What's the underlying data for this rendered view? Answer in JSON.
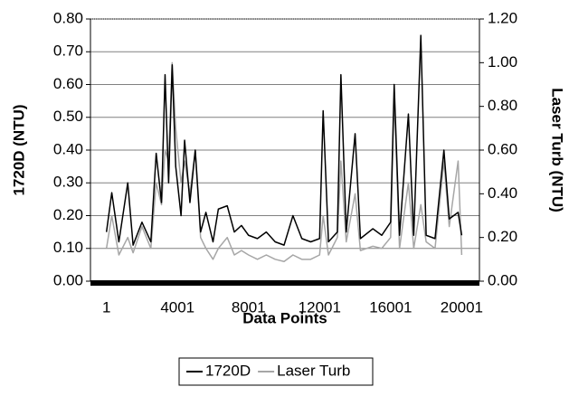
{
  "chart_data": {
    "type": "line",
    "x_label": "Data Points",
    "y_label": "1720D (NTU)",
    "y2_label": "Laser Turb (NTU)",
    "x": [
      1,
      300,
      700,
      1200,
      1500,
      2000,
      2500,
      2800,
      3100,
      3300,
      3500,
      3700,
      3900,
      4200,
      4400,
      4700,
      5000,
      5300,
      5600,
      6000,
      6300,
      6800,
      7200,
      7600,
      8000,
      8500,
      9000,
      9500,
      10000,
      10500,
      11000,
      11500,
      12000,
      12200,
      12500,
      13000,
      13200,
      13500,
      14000,
      14300,
      15000,
      15500,
      16000,
      16200,
      16500,
      17000,
      17300,
      17700,
      18000,
      18500,
      19000,
      19300,
      19800,
      20001
    ],
    "series": [
      {
        "name": "1720D",
        "color": "#000000",
        "axis": "y",
        "values": [
          0.15,
          0.27,
          0.12,
          0.3,
          0.11,
          0.18,
          0.12,
          0.39,
          0.24,
          0.63,
          0.3,
          0.66,
          0.35,
          0.2,
          0.43,
          0.24,
          0.4,
          0.15,
          0.21,
          0.12,
          0.22,
          0.23,
          0.15,
          0.17,
          0.14,
          0.13,
          0.15,
          0.12,
          0.11,
          0.2,
          0.13,
          0.12,
          0.13,
          0.52,
          0.12,
          0.15,
          0.63,
          0.15,
          0.45,
          0.13,
          0.16,
          0.14,
          0.18,
          0.6,
          0.14,
          0.51,
          0.14,
          0.75,
          0.14,
          0.13,
          0.4,
          0.19,
          0.21,
          0.14
        ]
      },
      {
        "name": "Laser Turb",
        "color": "#a6a6a6",
        "axis": "y2",
        "values": [
          0.15,
          0.3,
          0.12,
          0.2,
          0.13,
          0.25,
          0.15,
          0.45,
          0.35,
          0.6,
          0.55,
          1.0,
          0.7,
          0.45,
          0.55,
          0.4,
          0.6,
          0.2,
          0.15,
          0.1,
          0.15,
          0.2,
          0.12,
          0.14,
          0.12,
          0.1,
          0.12,
          0.1,
          0.09,
          0.12,
          0.1,
          0.1,
          0.12,
          0.3,
          0.12,
          0.2,
          0.55,
          0.18,
          0.4,
          0.14,
          0.16,
          0.15,
          0.2,
          0.85,
          0.15,
          0.45,
          0.15,
          0.35,
          0.18,
          0.15,
          0.55,
          0.25,
          0.55,
          0.12
        ]
      }
    ],
    "xlim": [
      -900,
      21000
    ],
    "xticks": [
      1,
      4001,
      8001,
      12001,
      16001,
      20001
    ],
    "ylim": [
      0,
      0.8
    ],
    "yticks": [
      {
        "value": 0,
        "label": "0.00"
      },
      {
        "value": 0.1,
        "label": "0.10"
      },
      {
        "value": 0.2,
        "label": "0.20"
      },
      {
        "value": 0.3,
        "label": "0.30"
      },
      {
        "value": 0.4,
        "label": "0.40"
      },
      {
        "value": 0.5,
        "label": "0.50"
      },
      {
        "value": 0.6,
        "label": "0.60"
      },
      {
        "value": 0.7,
        "label": "0.70"
      },
      {
        "value": 0.8,
        "label": "0.80"
      }
    ],
    "y2lim": [
      0,
      1.2
    ],
    "y2ticks": [
      {
        "value": 0,
        "label": "0.00"
      },
      {
        "value": 0.2,
        "label": "0.20"
      },
      {
        "value": 0.4,
        "label": "0.40"
      },
      {
        "value": 0.6,
        "label": "0.60"
      },
      {
        "value": 0.8,
        "label": "0.80"
      },
      {
        "value": 1.0,
        "label": "1.00"
      },
      {
        "value": 1.2,
        "label": "1.20"
      }
    ],
    "grid": true,
    "legend": "bottom"
  }
}
